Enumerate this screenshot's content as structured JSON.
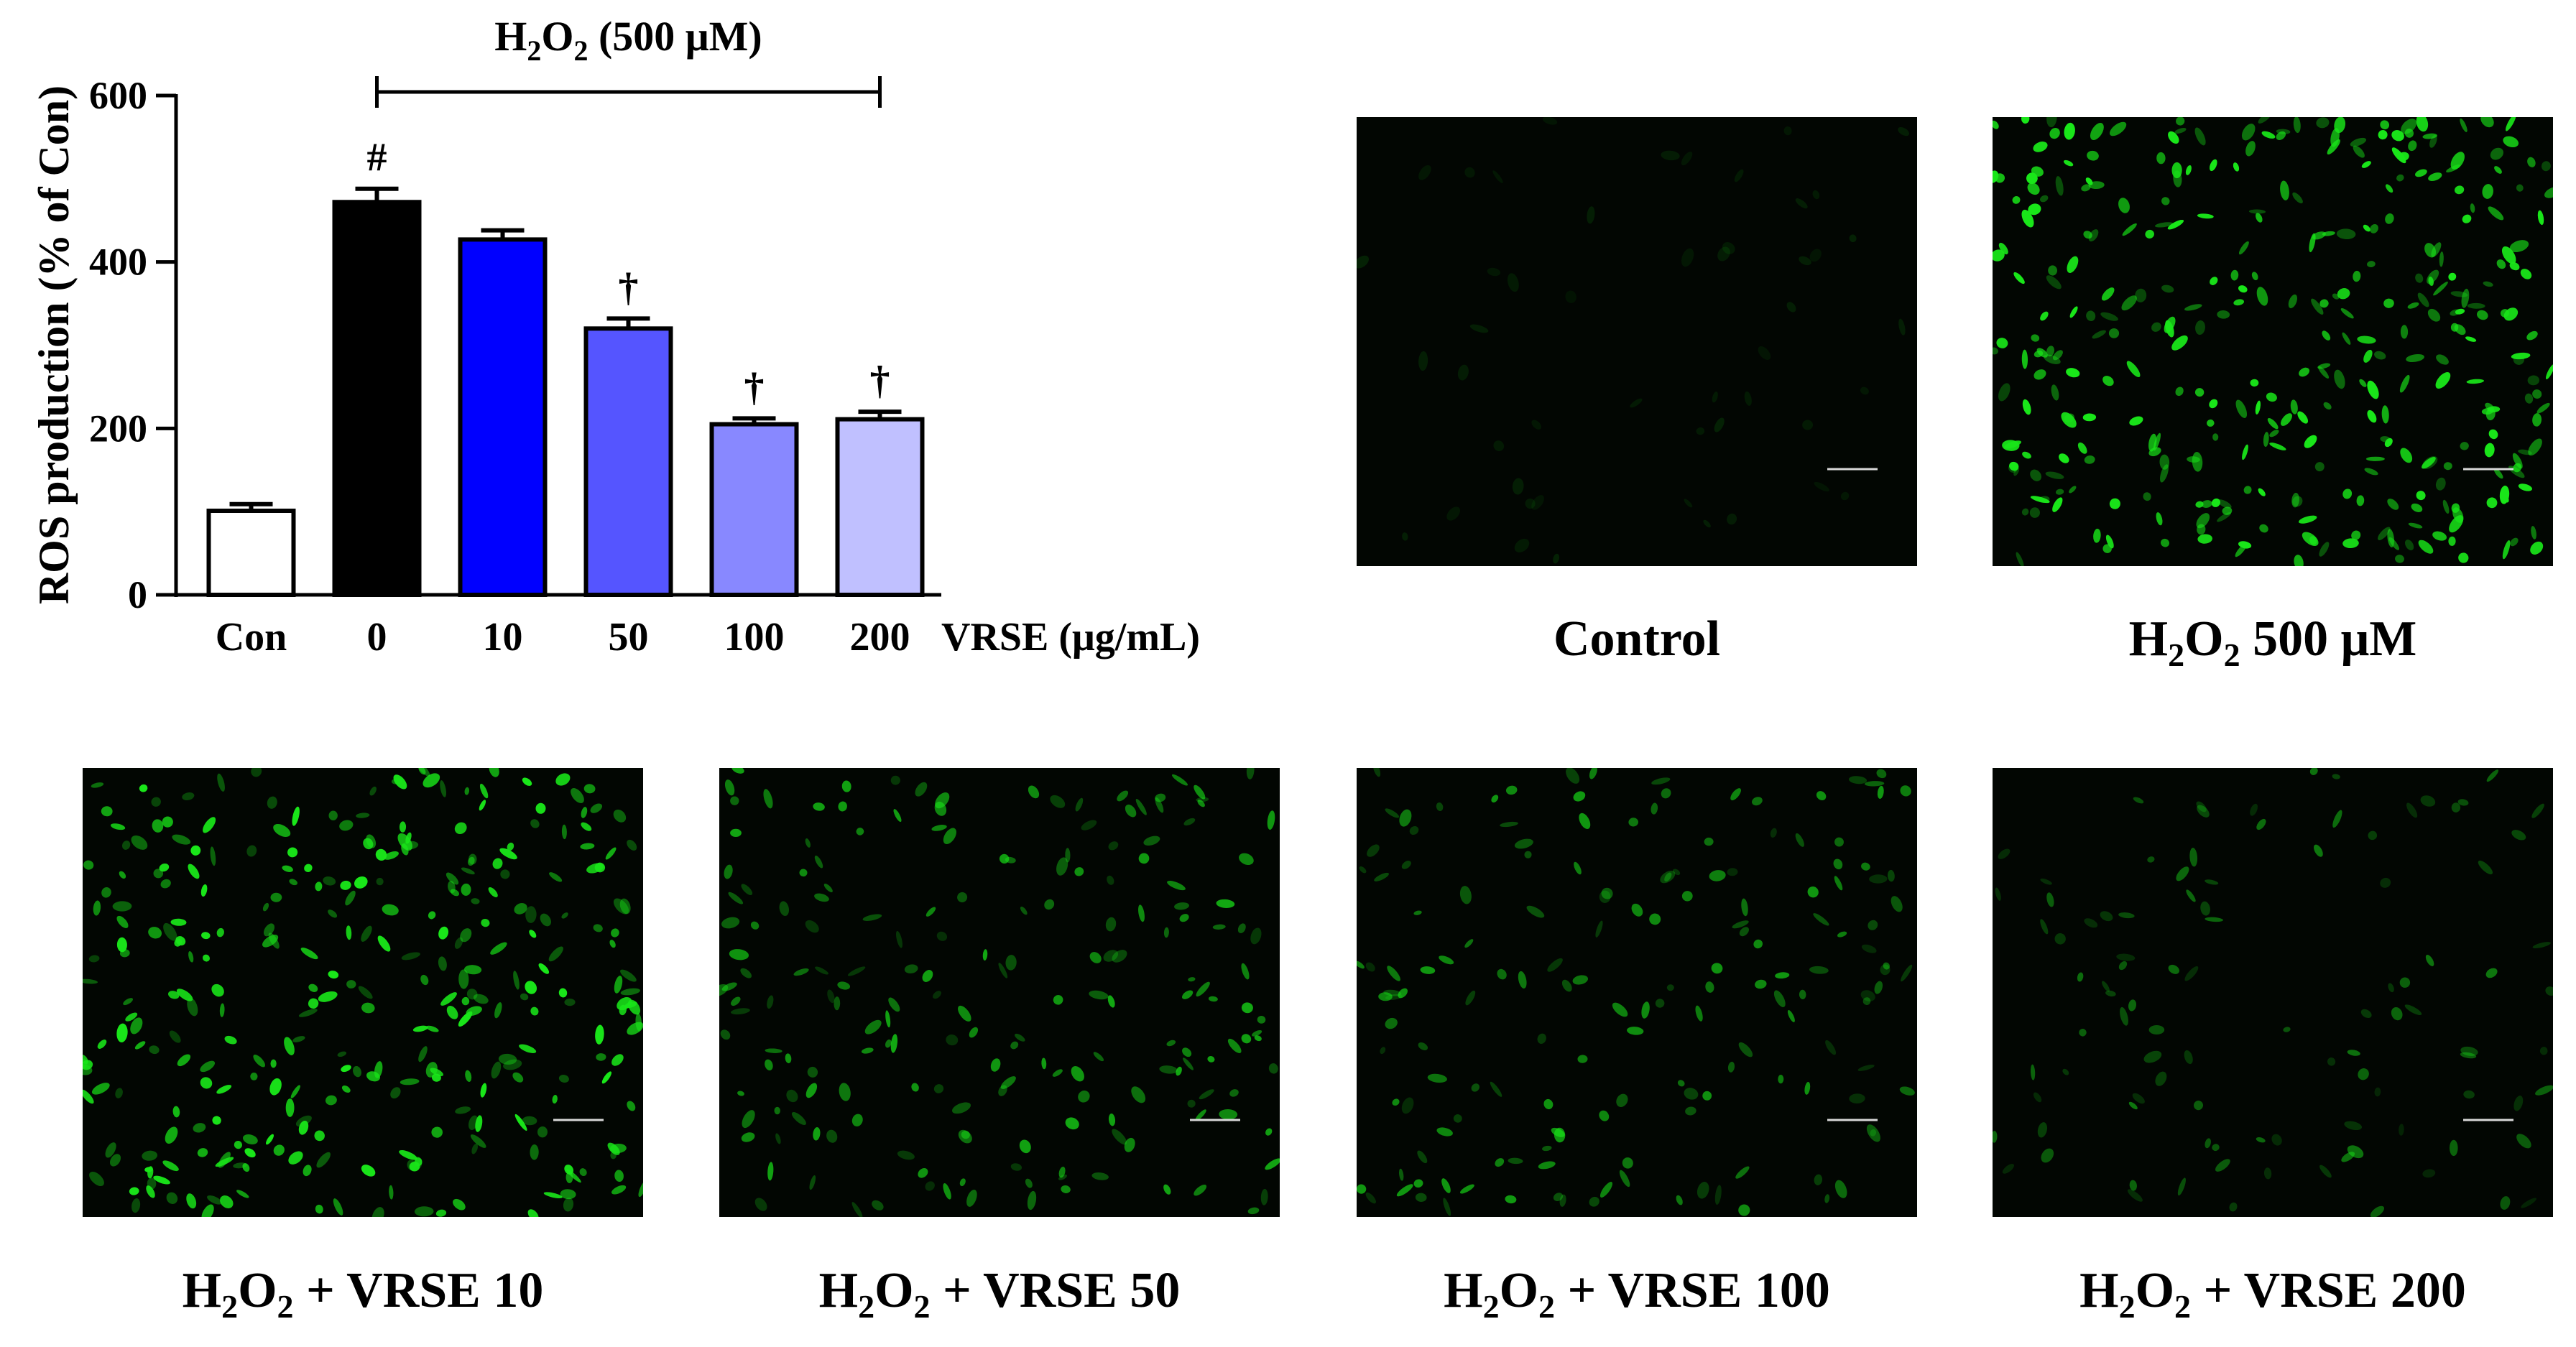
{
  "chart_data": {
    "type": "bar",
    "ylabel": "ROS production (% of Con)",
    "ylim": [
      0,
      600
    ],
    "yticks": [
      "0",
      "200",
      "400",
      "600"
    ],
    "categories": [
      "Con",
      "0",
      "10",
      "50",
      "100",
      "200"
    ],
    "values": [
      101,
      472,
      427,
      320,
      205,
      211
    ],
    "errors": [
      8,
      16,
      11,
      12,
      7,
      9
    ],
    "bar_colors": [
      "#ffffff",
      "#000000",
      "#0000ff",
      "#5555ff",
      "#8888ff",
      "#c0c0ff"
    ],
    "annotations": [
      "",
      "#",
      "",
      "†",
      "†",
      "†"
    ],
    "x_unit_label": "VRSE (μg/mL)",
    "treatment_bracket": {
      "label_main": "H",
      "label_sub": "2",
      "label_mid": "O",
      "label_sub2": "2",
      "label_rest": " (500 μM)",
      "from_category": "0",
      "to_category": "200"
    },
    "grid": false,
    "legend": "none"
  },
  "micrographs": [
    {
      "label_html": "Control",
      "intensity": 0.03
    },
    {
      "label_html": "H<sub>2</sub>O<sub>2</sub> 500 μM",
      "intensity": 1.0
    },
    {
      "label_html": "H<sub>2</sub>O<sub>2</sub> + VRSE 10",
      "intensity": 0.9
    },
    {
      "label_html": "H<sub>2</sub>O<sub>2</sub> + VRSE 50",
      "intensity": 0.5
    },
    {
      "label_html": "H<sub>2</sub>O<sub>2</sub> + VRSE 100",
      "intensity": 0.4
    },
    {
      "label_html": "H<sub>2</sub>O<sub>2</sub> + VRSE 200",
      "intensity": 0.2
    }
  ],
  "colors": {
    "background_field": "#020602",
    "cell_green": "#19e619",
    "scale_bar": "#d8d8d8"
  }
}
